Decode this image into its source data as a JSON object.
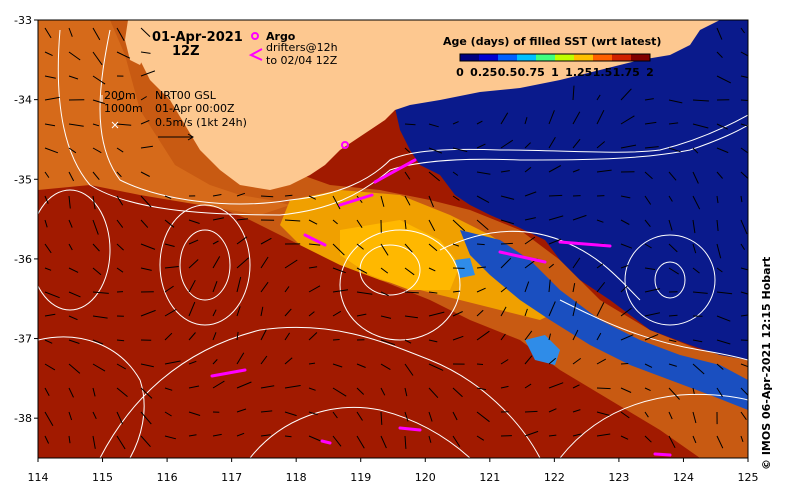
{
  "map": {
    "region": "Great Australian Bight / south-west Australia coast",
    "lon_ticks": [
      "114",
      "115",
      "116",
      "117",
      "118",
      "119",
      "120",
      "121",
      "122",
      "123",
      "124",
      "125"
    ],
    "lat_ticks": [
      "-33",
      "-34",
      "-35",
      "-36",
      "-37",
      "-38"
    ],
    "lon_range": [
      114,
      125
    ],
    "lat_range": [
      -38.5,
      -33
    ],
    "grid": false
  },
  "header": {
    "date": "01-Apr-2021",
    "hour": "12Z"
  },
  "legend_markers": {
    "argo_label": "Argo",
    "drifter_label_line1": "drifters@12h",
    "drifter_label_line2": "to 02/04 12Z",
    "argo_color": "#ff00ff",
    "drifter_color": "#ff00ff"
  },
  "info_box": {
    "contour_200": "200m",
    "contour_1000": "1000m",
    "product": "NRT00 GSL",
    "analysis_time": "01-Apr 00:00Z",
    "vector_scale": "0.5m/s (1kt 24h)"
  },
  "colorbar": {
    "title": "Age (days) of filled SST (wrt latest)",
    "tick_labels": [
      "0",
      "0.25",
      "0.5",
      "0.75",
      "1",
      "1.25",
      "1.5",
      "1.75",
      "2"
    ],
    "colors": [
      "#00007f",
      "#0000d0",
      "#0060ff",
      "#00c0ff",
      "#40ff80",
      "#c0ff00",
      "#ffc000",
      "#ff6000",
      "#d02000",
      "#800000"
    ]
  },
  "palette": {
    "land": "#fdc890",
    "age_0": "#0a1a8c",
    "age_high": "#a11a00",
    "age_mid": "#d2661a",
    "age_mid2": "#ffb000",
    "age_lowmid": "#1f6ad6",
    "contour": "#ffffff",
    "vector": "#000000"
  },
  "credit": "©  IMOS 06-Apr-2021 12:15 Hobart"
}
